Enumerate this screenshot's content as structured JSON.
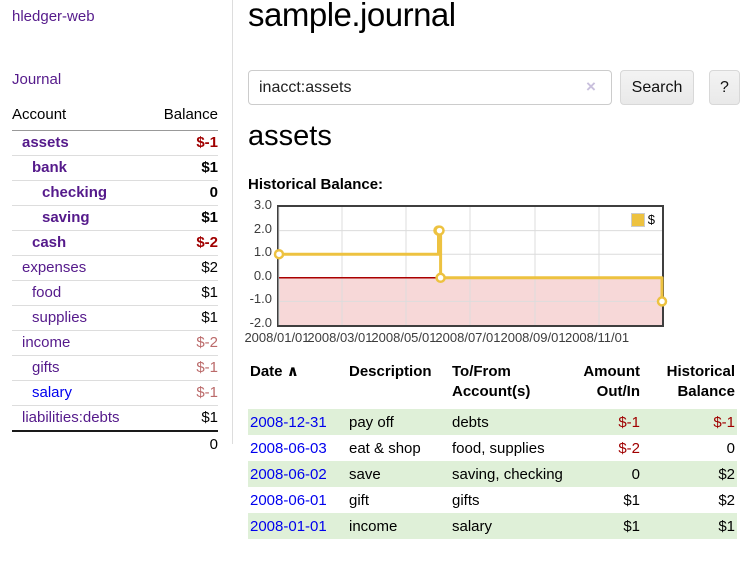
{
  "app": {
    "title": "hledger-web"
  },
  "sidebar": {
    "nav_journal": "Journal",
    "accounts": {
      "header_account": "Account",
      "header_balance": "Balance",
      "rows": [
        {
          "name": "assets",
          "balance": "$-1",
          "indent": 1,
          "bold": true,
          "balance_style": "neg-strong"
        },
        {
          "name": "bank",
          "balance": "$1",
          "indent": 2,
          "bold": true
        },
        {
          "name": "checking",
          "balance": "0",
          "indent": 3,
          "bold": true
        },
        {
          "name": "saving",
          "balance": "$1",
          "indent": 3,
          "bold": true
        },
        {
          "name": "cash",
          "balance": "$-2",
          "indent": 2,
          "bold": true,
          "balance_style": "neg-strong"
        },
        {
          "name": "expenses",
          "balance": "$2",
          "indent": 1,
          "bold": false
        },
        {
          "name": "food",
          "balance": "$1",
          "indent": 2,
          "bold": false
        },
        {
          "name": "supplies",
          "balance": "$1",
          "indent": 2,
          "bold": false
        },
        {
          "name": "income",
          "balance": "$-2",
          "indent": 1,
          "bold": false,
          "balance_style": "neg-muted"
        },
        {
          "name": "gifts",
          "balance": "$-1",
          "indent": 2,
          "bold": false,
          "balance_style": "neg-muted"
        },
        {
          "name": "salary",
          "balance": "$-1",
          "indent": 2,
          "bold": false,
          "balance_style": "neg-muted",
          "link_color": "blue"
        },
        {
          "name": "liabilities:debts",
          "balance": "$1",
          "indent": 1,
          "bold": false
        }
      ],
      "total": "0"
    }
  },
  "main": {
    "title": "sample.journal",
    "search": {
      "value": "inacct:assets",
      "clear_icon": "×",
      "button": "Search",
      "help_button": "?"
    },
    "account_heading": "assets",
    "chart_label": "Historical Balance:"
  },
  "chart_data": {
    "type": "line",
    "step": true,
    "title": "Historical Balance:",
    "legend": [
      {
        "label": "$",
        "color": "#edc240"
      }
    ],
    "legend_position": "top-right",
    "x_range": [
      "2008-01-01",
      "2008-12-31"
    ],
    "ylim": [
      -2.0,
      3.0
    ],
    "grid": true,
    "zero_line_color": "#aa0000",
    "negative_fill_color": "#f7d8d8",
    "grid_color": "#dcdcdc",
    "y_ticks": [
      {
        "v": 3,
        "label": "3.0"
      },
      {
        "v": 2,
        "label": "2.0"
      },
      {
        "v": 1,
        "label": "1.0"
      },
      {
        "v": 0,
        "label": "0.0"
      },
      {
        "v": -1,
        "label": "-1.0"
      },
      {
        "v": -2,
        "label": "-2.0"
      }
    ],
    "x_ticks": [
      {
        "date": "2008-01-01",
        "label": "2008/01/01"
      },
      {
        "date": "2008-03-01",
        "label": "2008/03/01"
      },
      {
        "date": "2008-05-01",
        "label": "2008/05/01"
      },
      {
        "date": "2008-07-01",
        "label": "2008/07/01"
      },
      {
        "date": "2008-09-01",
        "label": "2008/09/01"
      },
      {
        "date": "2008-11-01",
        "label": "2008/11/01"
      }
    ],
    "series": [
      {
        "name": "$",
        "color": "#edc240",
        "points": [
          [
            "2008-01-01",
            1
          ],
          [
            "2008-06-01",
            2
          ],
          [
            "2008-06-02",
            2
          ],
          [
            "2008-06-03",
            0
          ],
          [
            "2008-12-31",
            -1
          ]
        ]
      }
    ]
  },
  "register": {
    "headers": {
      "date": "Date",
      "description": "Description",
      "accounts": "To/From Account(s)",
      "amount": "Amount Out/In",
      "balance": "Historical Balance"
    },
    "sort_glyph": "∧",
    "rows": [
      {
        "date": "2008-12-31",
        "description": "pay off",
        "accounts": "debts",
        "amount": "$-1",
        "amount_neg": true,
        "balance": "$-1",
        "balance_neg": true
      },
      {
        "date": "2008-06-03",
        "description": "eat & shop",
        "accounts": "food, supplies",
        "amount": "$-2",
        "amount_neg": true,
        "balance": "0",
        "balance_neg": false
      },
      {
        "date": "2008-06-02",
        "description": "save",
        "accounts": "saving, checking",
        "amount": "0",
        "amount_neg": false,
        "balance": "$2",
        "balance_neg": false
      },
      {
        "date": "2008-06-01",
        "description": "gift",
        "accounts": "gifts",
        "amount": "$1",
        "amount_neg": false,
        "balance": "$2",
        "balance_neg": false
      },
      {
        "date": "2008-01-01",
        "description": "income",
        "accounts": "salary",
        "amount": "$1",
        "amount_neg": false,
        "balance": "$1",
        "balance_neg": false
      }
    ]
  },
  "colors": {
    "link_purple": "#551a8b",
    "link_blue": "#0000ee",
    "negative_strong": "#a00000",
    "negative_muted": "#bb6a6a",
    "row_green": "#dff0d8",
    "chart_line": "#edc240",
    "chart_negative_fill": "#f7d8d8",
    "chart_zero_line": "#aa0000"
  }
}
